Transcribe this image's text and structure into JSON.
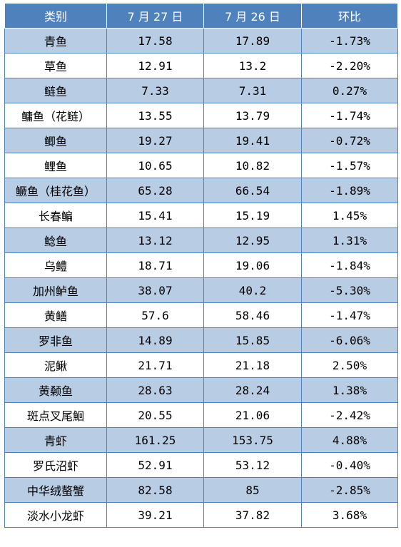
{
  "header": {
    "category": "类别",
    "date1": "7 月 27 日",
    "date2": "7 月 26 日",
    "change": "环比"
  },
  "rows": [
    {
      "name": "青鱼",
      "v1": "17.58",
      "v2": "17.89",
      "chg": "-1.73%"
    },
    {
      "name": "草鱼",
      "v1": "12.91",
      "v2": "13.2",
      "chg": "-2.20%"
    },
    {
      "name": "鲢鱼",
      "v1": "7.33",
      "v2": "7.31",
      "chg": "0.27%"
    },
    {
      "name": "鳙鱼（花鲢）",
      "v1": "13.55",
      "v2": "13.79",
      "chg": "-1.74%"
    },
    {
      "name": "鲫鱼",
      "v1": "19.27",
      "v2": "19.41",
      "chg": "-0.72%"
    },
    {
      "name": "鲤鱼",
      "v1": "10.65",
      "v2": "10.82",
      "chg": "-1.57%"
    },
    {
      "name": "鳜鱼（桂花鱼）",
      "v1": "65.28",
      "v2": "66.54",
      "chg": "-1.89%"
    },
    {
      "name": "长春鳊",
      "v1": "15.41",
      "v2": "15.19",
      "chg": "1.45%"
    },
    {
      "name": "鲶鱼",
      "v1": "13.12",
      "v2": "12.95",
      "chg": "1.31%"
    },
    {
      "name": "乌鳢",
      "v1": "18.71",
      "v2": "19.06",
      "chg": "-1.84%"
    },
    {
      "name": "加州鲈鱼",
      "v1": "38.07",
      "v2": "40.2",
      "chg": "-5.30%"
    },
    {
      "name": "黄鳝",
      "v1": "57.6",
      "v2": "58.46",
      "chg": "-1.47%"
    },
    {
      "name": "罗非鱼",
      "v1": "14.89",
      "v2": "15.85",
      "chg": "-6.06%"
    },
    {
      "name": "泥鳅",
      "v1": "21.71",
      "v2": "21.18",
      "chg": "2.50%"
    },
    {
      "name": "黄颡鱼",
      "v1": "28.63",
      "v2": "28.24",
      "chg": "1.38%"
    },
    {
      "name": "斑点叉尾鮰",
      "v1": "20.55",
      "v2": "21.06",
      "chg": "-2.42%"
    },
    {
      "name": "青虾",
      "v1": "161.25",
      "v2": "153.75",
      "chg": "4.88%"
    },
    {
      "name": "罗氏沼虾",
      "v1": "52.91",
      "v2": "53.12",
      "chg": "-0.40%"
    },
    {
      "name": "中华绒螯蟹",
      "v1": "82.58",
      "v2": "85",
      "chg": "-2.85%"
    },
    {
      "name": "淡水小龙虾",
      "v1": "39.21",
      "v2": "37.82",
      "chg": "3.68%"
    }
  ],
  "colors": {
    "header_bg": "#4f81bd",
    "band": "#b8cce4",
    "border": "#4f81bd"
  }
}
